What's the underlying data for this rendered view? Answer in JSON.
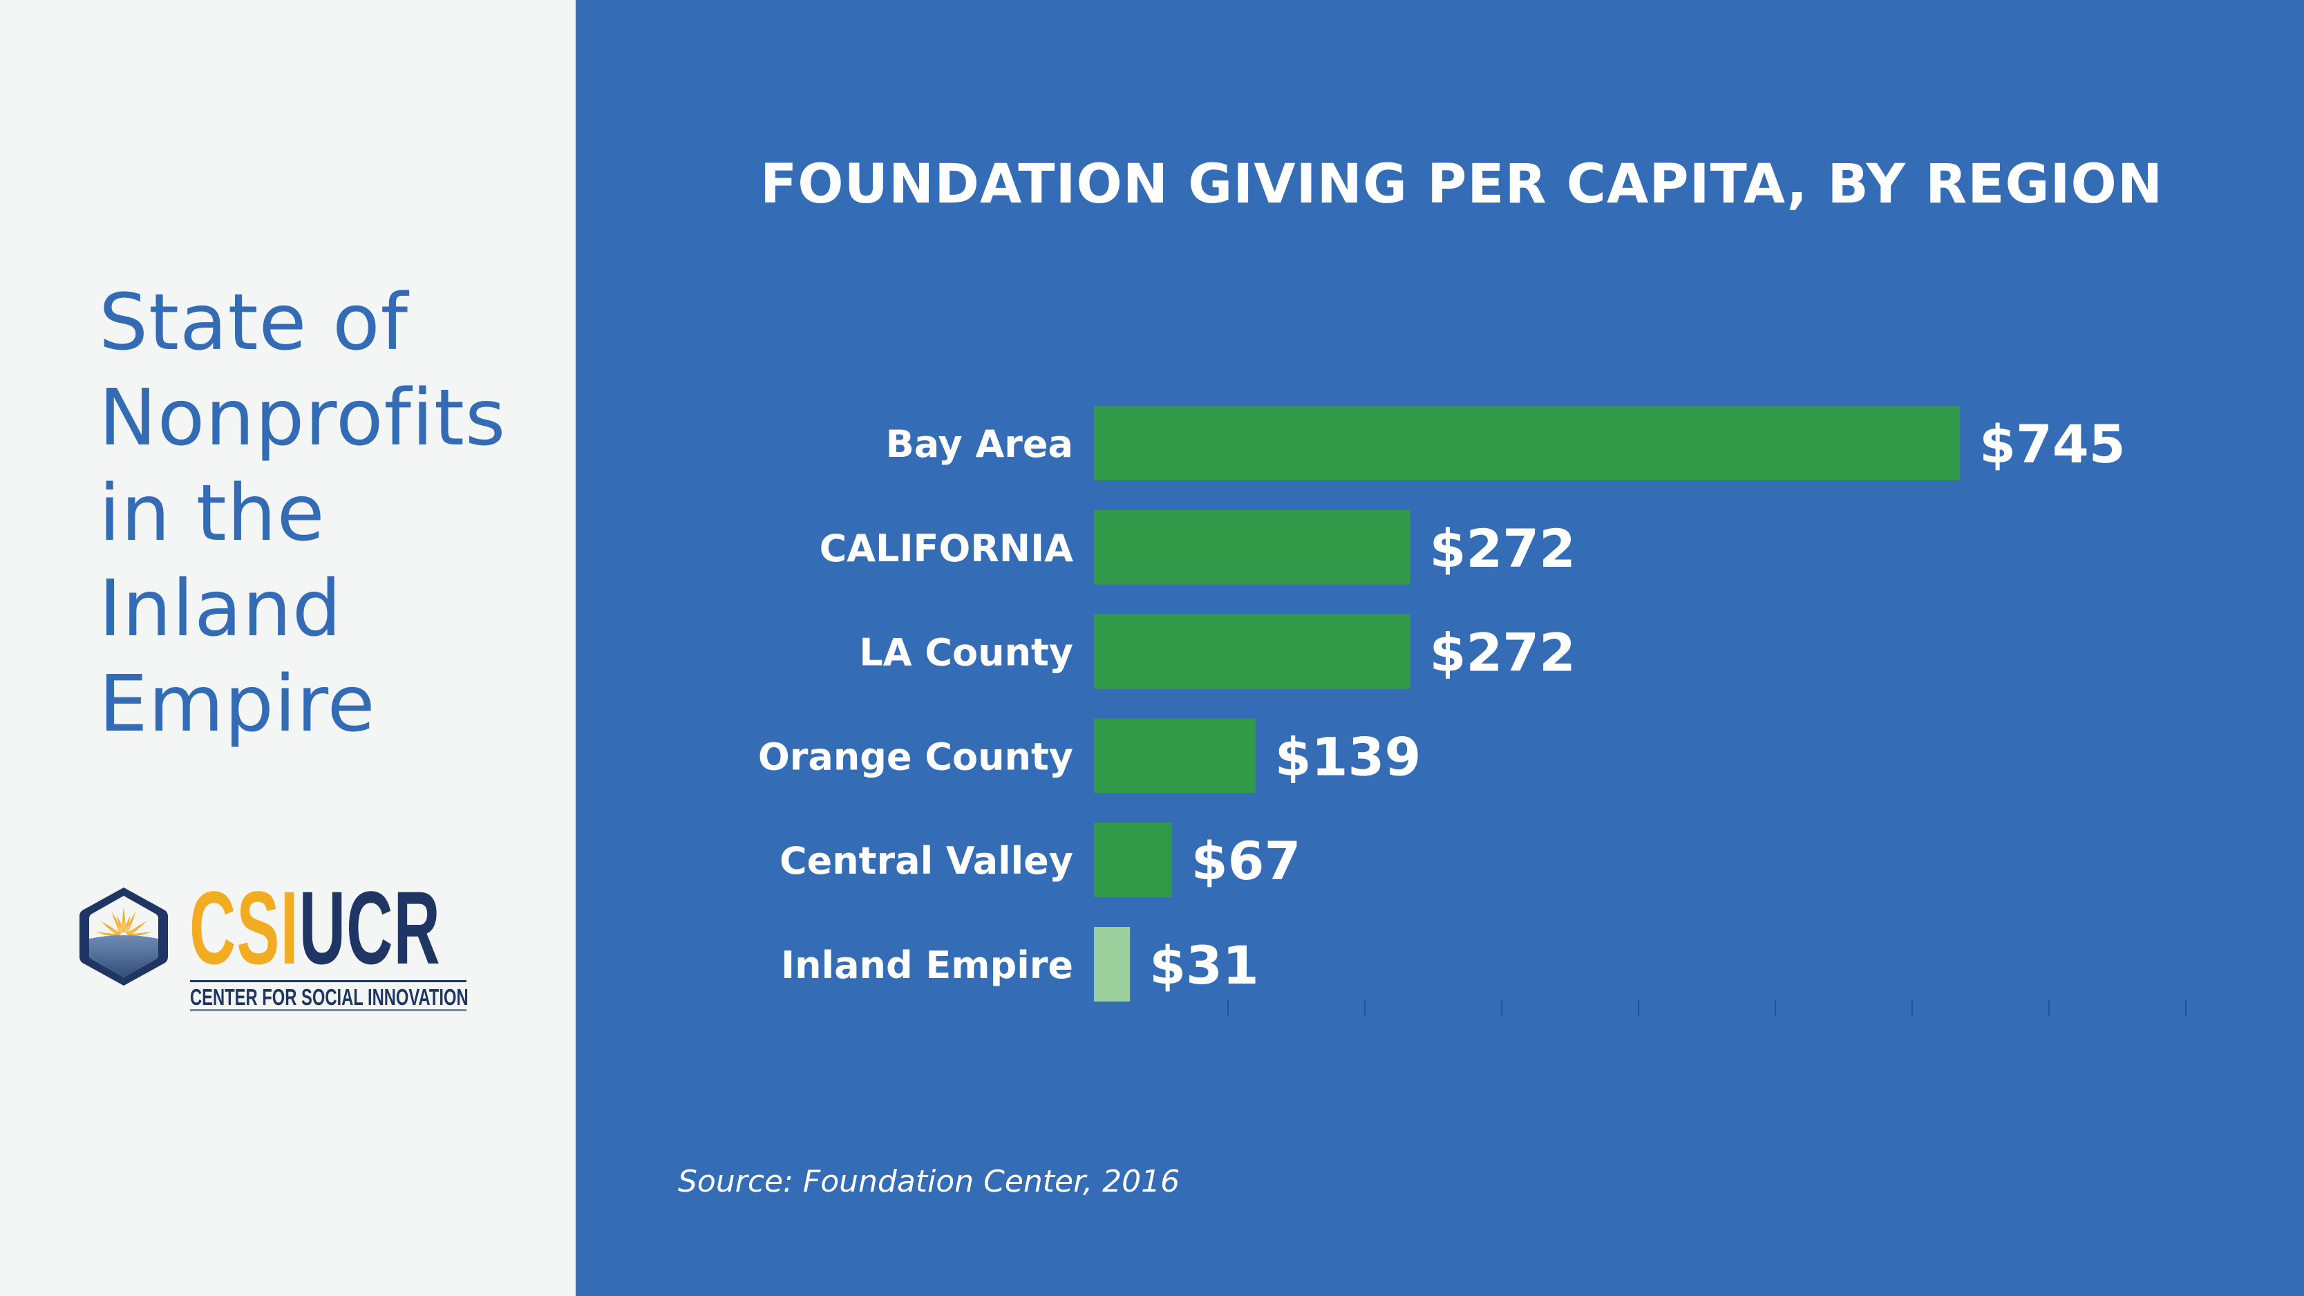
{
  "sidebar": {
    "title_lines": [
      "State of",
      "Nonprofits",
      "in the",
      "Inland",
      "Empire"
    ],
    "logo": {
      "wordmark_part1": "CSI",
      "wordmark_part2": "UCR",
      "subtitle": "CENTER FOR SOCIAL INNOVATION",
      "icon": "hexagon-sunrise-icon"
    }
  },
  "colors": {
    "left_background": "#F4F5F5",
    "right_background": "#346CB5",
    "side_title": "#346BB5",
    "bar": "#319A48",
    "bar_highlight": "#9BCF9B",
    "tick": "#2A528E",
    "logo_gold": "#F2AC22",
    "logo_navy": "#1F3564"
  },
  "chart_data": {
    "type": "bar",
    "orientation": "horizontal",
    "title": "FOUNDATION GIVING PER CAPITA, BY REGION",
    "categories": [
      "Bay Area",
      "CALIFORNIA",
      "LA County",
      "Orange County",
      "Central Valley",
      "Inland Empire"
    ],
    "values": [
      745,
      272,
      272,
      139,
      67,
      31
    ],
    "value_labels": [
      "$745",
      "$272",
      "$272",
      "$139",
      "$67",
      "$31"
    ],
    "highlighted_category": "Inland Empire",
    "unit": "USD per capita",
    "xlabel": "",
    "ylabel": "",
    "xlim": [
      0,
      1000
    ],
    "grid": false,
    "legend": "none",
    "source": "Source: Foundation Center, 2016"
  }
}
